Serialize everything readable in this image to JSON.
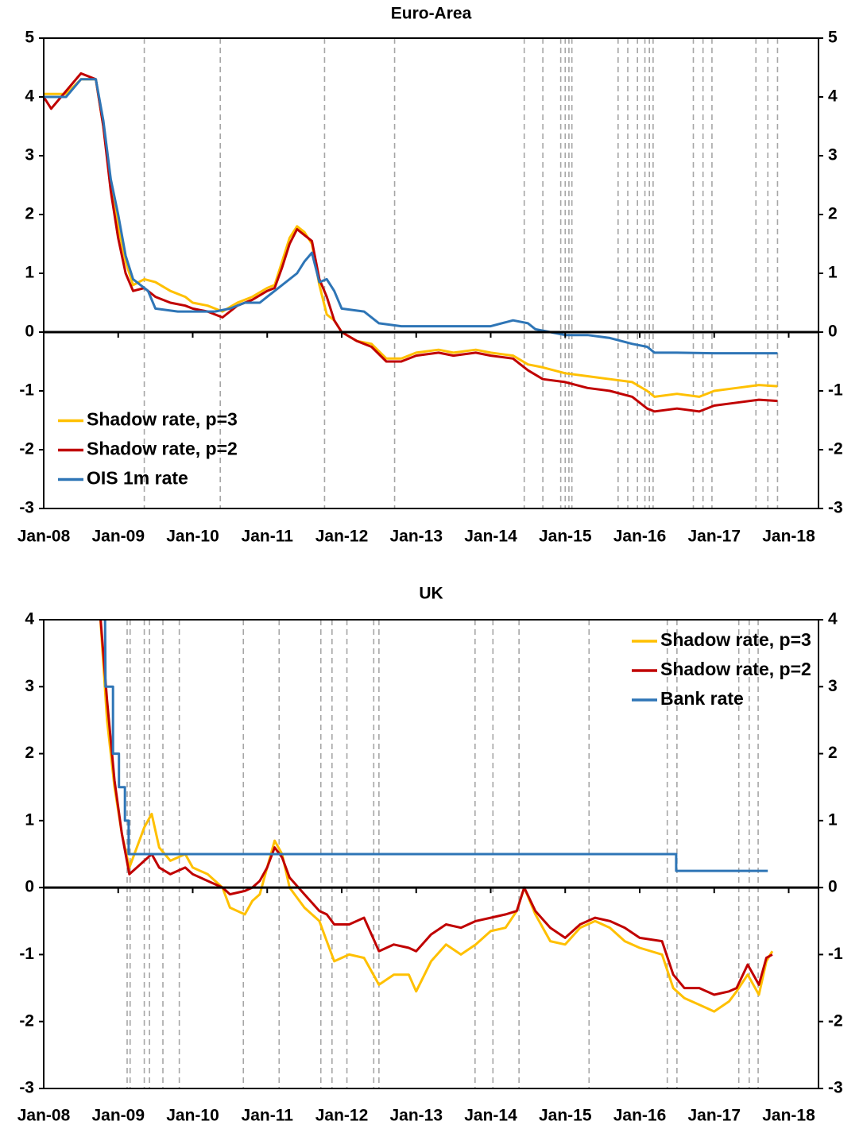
{
  "chart_data": [
    {
      "type": "line",
      "title": "Euro-Area",
      "xlim": [
        2008,
        2018.4
      ],
      "xticks": [
        {
          "value": 2008,
          "label": "Jan-08"
        },
        {
          "value": 2009,
          "label": "Jan-09"
        },
        {
          "value": 2010,
          "label": "Jan-10"
        },
        {
          "value": 2011,
          "label": "Jan-11"
        },
        {
          "value": 2012,
          "label": "Jan-12"
        },
        {
          "value": 2013,
          "label": "Jan-13"
        },
        {
          "value": 2014,
          "label": "Jan-14"
        },
        {
          "value": 2015,
          "label": "Jan-15"
        },
        {
          "value": 2016,
          "label": "Jan-16"
        },
        {
          "value": 2017,
          "label": "Jan-17"
        },
        {
          "value": 2018,
          "label": "Jan-18"
        }
      ],
      "ylim": [
        -3,
        5
      ],
      "yticks": [
        -3,
        -2,
        -1,
        0,
        1,
        2,
        3,
        4,
        5
      ],
      "legend": "lower left",
      "vlines": [
        2009.35,
        2010.37,
        2011.77,
        2012.71,
        2014.45,
        2014.7,
        2014.94,
        2015.0,
        2015.05,
        2015.09,
        2015.71,
        2015.84,
        2015.97,
        2016.07,
        2016.13,
        2016.18,
        2016.72,
        2016.85,
        2016.97,
        2017.56,
        2017.72,
        2017.85
      ],
      "series": [
        {
          "name": "Shadow rate, p=3",
          "color": "#ffc000",
          "x": [
            2008.0,
            2008.3,
            2008.5,
            2008.7,
            2008.8,
            2008.9,
            2009.0,
            2009.1,
            2009.2,
            2009.35,
            2009.5,
            2009.7,
            2009.9,
            2010.0,
            2010.2,
            2010.4,
            2010.6,
            2010.8,
            2011.0,
            2011.1,
            2011.2,
            2011.3,
            2011.4,
            2011.5,
            2011.6,
            2011.7,
            2011.8,
            2011.9,
            2012.0,
            2012.2,
            2012.4,
            2012.6,
            2012.8,
            2013.0,
            2013.3,
            2013.5,
            2013.8,
            2014.0,
            2014.3,
            2014.5,
            2014.7,
            2015.0,
            2015.3,
            2015.6,
            2015.9,
            2016.1,
            2016.2,
            2016.5,
            2016.8,
            2017.0,
            2017.3,
            2017.6,
            2017.85
          ],
          "values": [
            4.05,
            4.05,
            4.3,
            4.3,
            3.5,
            2.5,
            1.8,
            1.2,
            0.8,
            0.9,
            0.85,
            0.7,
            0.6,
            0.5,
            0.45,
            0.35,
            0.5,
            0.6,
            0.75,
            0.8,
            1.2,
            1.6,
            1.8,
            1.7,
            1.5,
            0.8,
            0.3,
            0.2,
            0.0,
            -0.15,
            -0.2,
            -0.45,
            -0.45,
            -0.35,
            -0.3,
            -0.35,
            -0.3,
            -0.35,
            -0.4,
            -0.55,
            -0.6,
            -0.7,
            -0.75,
            -0.8,
            -0.85,
            -1.0,
            -1.1,
            -1.05,
            -1.1,
            -1.0,
            -0.95,
            -0.9,
            -0.92
          ]
        },
        {
          "name": "Shadow rate, p=2",
          "color": "#c00000",
          "x": [
            2008.0,
            2008.1,
            2008.3,
            2008.5,
            2008.7,
            2008.8,
            2008.9,
            2009.0,
            2009.1,
            2009.2,
            2009.35,
            2009.5,
            2009.7,
            2009.9,
            2010.0,
            2010.2,
            2010.4,
            2010.6,
            2010.8,
            2011.0,
            2011.1,
            2011.2,
            2011.3,
            2011.4,
            2011.5,
            2011.6,
            2011.7,
            2011.8,
            2011.9,
            2012.0,
            2012.2,
            2012.4,
            2012.6,
            2012.8,
            2013.0,
            2013.3,
            2013.5,
            2013.8,
            2014.0,
            2014.3,
            2014.5,
            2014.7,
            2015.0,
            2015.3,
            2015.6,
            2015.9,
            2016.1,
            2016.2,
            2016.5,
            2016.8,
            2017.0,
            2017.3,
            2017.6,
            2017.85
          ],
          "values": [
            4.0,
            3.8,
            4.1,
            4.4,
            4.3,
            3.5,
            2.4,
            1.6,
            1.0,
            0.7,
            0.75,
            0.6,
            0.5,
            0.45,
            0.4,
            0.35,
            0.25,
            0.45,
            0.55,
            0.7,
            0.75,
            1.1,
            1.5,
            1.75,
            1.65,
            1.55,
            0.9,
            0.6,
            0.2,
            0.0,
            -0.15,
            -0.25,
            -0.5,
            -0.5,
            -0.4,
            -0.35,
            -0.4,
            -0.35,
            -0.4,
            -0.45,
            -0.65,
            -0.8,
            -0.85,
            -0.95,
            -1.0,
            -1.1,
            -1.3,
            -1.35,
            -1.3,
            -1.35,
            -1.25,
            -1.2,
            -1.15,
            -1.17
          ]
        },
        {
          "name": "OIS 1m rate",
          "color": "#2e75b6",
          "x": [
            2008.0,
            2008.3,
            2008.5,
            2008.7,
            2008.8,
            2008.9,
            2009.0,
            2009.1,
            2009.2,
            2009.3,
            2009.4,
            2009.5,
            2009.8,
            2010.0,
            2010.3,
            2010.5,
            2010.7,
            2010.9,
            2011.0,
            2011.2,
            2011.4,
            2011.5,
            2011.6,
            2011.7,
            2011.8,
            2011.9,
            2012.0,
            2012.3,
            2012.5,
            2012.8,
            2013.0,
            2013.5,
            2014.0,
            2014.3,
            2014.5,
            2014.6,
            2014.8,
            2015.0,
            2015.3,
            2015.6,
            2015.9,
            2016.1,
            2016.2,
            2016.5,
            2017.0,
            2017.85
          ],
          "values": [
            4.0,
            4.0,
            4.3,
            4.3,
            3.6,
            2.6,
            2.0,
            1.3,
            0.9,
            0.8,
            0.7,
            0.4,
            0.35,
            0.35,
            0.35,
            0.4,
            0.5,
            0.5,
            0.6,
            0.8,
            1.0,
            1.2,
            1.35,
            0.85,
            0.9,
            0.7,
            0.4,
            0.35,
            0.15,
            0.1,
            0.1,
            0.1,
            0.1,
            0.2,
            0.15,
            0.05,
            0.0,
            -0.05,
            -0.05,
            -0.1,
            -0.2,
            -0.25,
            -0.35,
            -0.35,
            -0.36,
            -0.36
          ]
        }
      ]
    },
    {
      "type": "line",
      "title": "UK",
      "xlim": [
        2008,
        2018.4
      ],
      "xticks": [
        {
          "value": 2008,
          "label": "Jan-08"
        },
        {
          "value": 2009,
          "label": "Jan-09"
        },
        {
          "value": 2010,
          "label": "Jan-10"
        },
        {
          "value": 2011,
          "label": "Jan-11"
        },
        {
          "value": 2012,
          "label": "Jan-12"
        },
        {
          "value": 2013,
          "label": "Jan-13"
        },
        {
          "value": 2014,
          "label": "Jan-14"
        },
        {
          "value": 2015,
          "label": "Jan-15"
        },
        {
          "value": 2016,
          "label": "Jan-16"
        },
        {
          "value": 2017,
          "label": "Jan-17"
        },
        {
          "value": 2018,
          "label": "Jan-18"
        }
      ],
      "ylim": [
        -3,
        4
      ],
      "yticks": [
        -3,
        -2,
        -1,
        0,
        1,
        2,
        3,
        4
      ],
      "legend": "upper right",
      "vlines": [
        2009.12,
        2009.16,
        2009.35,
        2009.42,
        2009.6,
        2009.82,
        2010.68,
        2011.16,
        2011.72,
        2011.87,
        2012.07,
        2012.43,
        2012.5,
        2013.79,
        2014.03,
        2014.38,
        2015.32,
        2016.37,
        2016.5,
        2017.33,
        2017.47,
        2017.59
      ],
      "series": [
        {
          "name": "Shadow rate, p=3",
          "color": "#ffc000",
          "x": [
            2008.75,
            2008.85,
            2008.95,
            2009.05,
            2009.15,
            2009.25,
            2009.35,
            2009.45,
            2009.55,
            2009.7,
            2009.9,
            2010.0,
            2010.2,
            2010.4,
            2010.5,
            2010.7,
            2010.8,
            2010.9,
            2011.0,
            2011.1,
            2011.2,
            2011.3,
            2011.5,
            2011.7,
            2011.8,
            2011.9,
            2012.1,
            2012.3,
            2012.5,
            2012.7,
            2012.9,
            2013.0,
            2013.2,
            2013.4,
            2013.6,
            2013.8,
            2014.0,
            2014.2,
            2014.35,
            2014.45,
            2014.6,
            2014.8,
            2015.0,
            2015.2,
            2015.4,
            2015.6,
            2015.8,
            2016.0,
            2016.3,
            2016.45,
            2016.6,
            2016.8,
            2017.0,
            2017.2,
            2017.3,
            2017.45,
            2017.6,
            2017.7,
            2017.78
          ],
          "values": [
            4.2,
            2.5,
            1.5,
            0.8,
            0.3,
            0.6,
            0.9,
            1.1,
            0.6,
            0.4,
            0.5,
            0.3,
            0.2,
            0.0,
            -0.3,
            -0.4,
            -0.2,
            -0.1,
            0.3,
            0.7,
            0.5,
            0.0,
            -0.3,
            -0.5,
            -0.8,
            -1.1,
            -1.0,
            -1.05,
            -1.45,
            -1.3,
            -1.3,
            -1.55,
            -1.1,
            -0.85,
            -1.0,
            -0.85,
            -0.65,
            -0.6,
            -0.35,
            0.0,
            -0.4,
            -0.8,
            -0.85,
            -0.6,
            -0.5,
            -0.6,
            -0.8,
            -0.9,
            -1.0,
            -1.5,
            -1.65,
            -1.75,
            -1.85,
            -1.7,
            -1.55,
            -1.3,
            -1.6,
            -1.1,
            -0.95
          ]
        },
        {
          "name": "Shadow rate, p=2",
          "color": "#c00000",
          "x": [
            2008.75,
            2008.85,
            2008.95,
            2009.05,
            2009.15,
            2009.25,
            2009.35,
            2009.45,
            2009.55,
            2009.7,
            2009.9,
            2010.0,
            2010.2,
            2010.4,
            2010.5,
            2010.7,
            2010.8,
            2010.9,
            2011.0,
            2011.1,
            2011.2,
            2011.3,
            2011.5,
            2011.7,
            2011.8,
            2011.9,
            2012.1,
            2012.3,
            2012.5,
            2012.7,
            2012.9,
            2013.0,
            2013.2,
            2013.4,
            2013.6,
            2013.8,
            2014.0,
            2014.2,
            2014.35,
            2014.45,
            2014.6,
            2014.8,
            2015.0,
            2015.2,
            2015.4,
            2015.6,
            2015.8,
            2016.0,
            2016.3,
            2016.45,
            2016.6,
            2016.8,
            2017.0,
            2017.2,
            2017.3,
            2017.45,
            2017.6,
            2017.7,
            2017.78
          ],
          "values": [
            4.2,
            2.8,
            1.6,
            0.8,
            0.2,
            0.3,
            0.4,
            0.5,
            0.3,
            0.2,
            0.3,
            0.2,
            0.1,
            0.0,
            -0.1,
            -0.05,
            0.0,
            0.1,
            0.3,
            0.6,
            0.45,
            0.15,
            -0.1,
            -0.35,
            -0.4,
            -0.55,
            -0.55,
            -0.45,
            -0.95,
            -0.85,
            -0.9,
            -0.95,
            -0.7,
            -0.55,
            -0.6,
            -0.5,
            -0.45,
            -0.4,
            -0.35,
            0.0,
            -0.35,
            -0.6,
            -0.75,
            -0.55,
            -0.45,
            -0.5,
            -0.6,
            -0.75,
            -0.8,
            -1.3,
            -1.5,
            -1.5,
            -1.6,
            -1.55,
            -1.5,
            -1.15,
            -1.45,
            -1.05,
            -1.0
          ]
        },
        {
          "name": "Bank rate",
          "color": "#2e75b6",
          "x": [
            2008.82,
            2008.83,
            2008.93,
            2008.93,
            2009.01,
            2009.01,
            2009.09,
            2009.09,
            2009.14,
            2009.14,
            2016.49,
            2016.49,
            2017.72
          ],
          "values": [
            4.5,
            3,
            3,
            2,
            2,
            1.5,
            1.5,
            1,
            1,
            0.5,
            0.5,
            0.25,
            0.25
          ]
        }
      ]
    }
  ]
}
